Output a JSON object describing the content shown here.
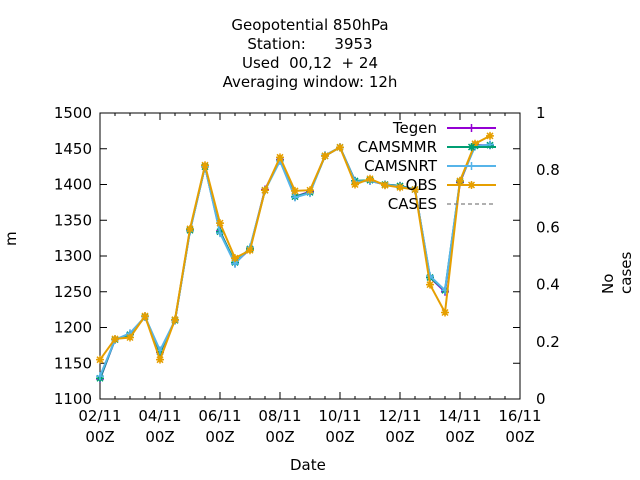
{
  "title_lines": [
    "Geopotential 850hPa",
    "Station:      3953",
    "Used  00,12  + 24",
    "Averaging window: 12h"
  ],
  "chart_data": {
    "type": "line",
    "xlabel": "Date",
    "ylabel": "m",
    "y2label": "No cases",
    "x_ticks": [
      "02/11",
      "04/11",
      "06/11",
      "08/11",
      "10/11",
      "12/11",
      "14/11",
      "16/11"
    ],
    "x_tick_sub": "00Z",
    "y_ticks": [
      1100,
      1150,
      1200,
      1250,
      1300,
      1350,
      1400,
      1450,
      1500
    ],
    "y2_ticks": [
      0,
      0.2,
      0.4,
      0.6,
      0.8,
      1
    ],
    "ylim": [
      1100,
      1500
    ],
    "y2lim": [
      0,
      1
    ],
    "xlim": [
      0,
      28
    ],
    "x_unit": "half-days since 02/11 00Z",
    "grid": false,
    "legend_position": "top-right",
    "series": [
      {
        "name": "Tegen",
        "color": "#9400d3",
        "marker": "plus",
        "x": [
          0,
          1,
          2,
          3,
          4,
          5,
          6,
          7,
          8,
          9,
          10,
          11,
          12,
          13,
          14,
          15,
          16,
          17,
          18,
          19,
          20,
          21,
          22,
          23,
          24,
          25,
          26,
          27
        ],
        "values": [
          1128,
          1183,
          1190,
          1215,
          1165,
          1210,
          1336,
          1425,
          1335,
          1290,
          1310,
          1393,
          1435,
          1383,
          1390,
          1440,
          1452,
          1405,
          1405,
          1400,
          1398,
          1393,
          1270,
          1250,
          1403,
          1455,
          1455,
          null
        ]
      },
      {
        "name": "CAMSMMR",
        "color": "#009e73",
        "marker": "star",
        "x": [
          0,
          1,
          2,
          3,
          4,
          5,
          6,
          7,
          8,
          9,
          10,
          11,
          12,
          13,
          14,
          15,
          16,
          17,
          18,
          19,
          20,
          21,
          22,
          23,
          24,
          25,
          26,
          27
        ],
        "values": [
          1129,
          1183,
          1190,
          1215,
          1166,
          1210,
          1336,
          1425,
          1334,
          1291,
          1310,
          1392,
          1434,
          1383,
          1389,
          1440,
          1452,
          1405,
          1406,
          1400,
          1398,
          1393,
          1270,
          1252,
          1404,
          1454,
          1455,
          null
        ]
      },
      {
        "name": "CAMSNRT",
        "color": "#56b4e9",
        "marker": "plus",
        "x": [
          0,
          1,
          2,
          3,
          4,
          5,
          6,
          7,
          8,
          9,
          10,
          11,
          12,
          13,
          14,
          15,
          16,
          17,
          18,
          19,
          20,
          21,
          22,
          23,
          24,
          25,
          26,
          27
        ],
        "values": [
          1132,
          1183,
          1192,
          1215,
          1168,
          1210,
          1335,
          1425,
          1332,
          1289,
          1312,
          1392,
          1433,
          1382,
          1388,
          1441,
          1452,
          1404,
          1405,
          1400,
          1397,
          1393,
          1272,
          1252,
          1405,
          1453,
          1456,
          null
        ]
      },
      {
        "name": "OBS",
        "color": "#e69f00",
        "marker": "star",
        "x": [
          0,
          1,
          2,
          3,
          4,
          5,
          6,
          7,
          8,
          9,
          10,
          11,
          12,
          13,
          14,
          15,
          16,
          17,
          18,
          19,
          20,
          21,
          22,
          23,
          24,
          25,
          26,
          27
        ],
        "values": [
          1155,
          1184,
          1186,
          1216,
          1155,
          1211,
          1338,
          1427,
          1346,
          1297,
          1308,
          1392,
          1438,
          1391,
          1392,
          1440,
          1452,
          1400,
          1408,
          1399,
          1396,
          1393,
          1260,
          1221,
          1405,
          1457,
          1468,
          null
        ]
      },
      {
        "name": "CASES",
        "color": "#808080",
        "dash": true,
        "x": [],
        "values": []
      }
    ]
  }
}
